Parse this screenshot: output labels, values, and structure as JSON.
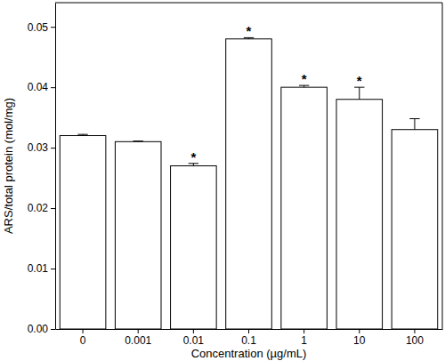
{
  "chart_data": {
    "type": "bar",
    "x_label": "Concentration (µg/mL)",
    "y_label": "ARS/total protein (mol/mg)",
    "categories": [
      "0",
      "0.001",
      "0.01",
      "0.1",
      "1",
      "10",
      "100"
    ],
    "values": [
      0.032,
      0.031,
      0.027,
      0.048,
      0.04,
      0.038,
      0.033
    ],
    "errors": [
      0.0002,
      0.0001,
      0.0004,
      0.0002,
      0.0003,
      0.002,
      0.0018
    ],
    "color": "#ffffff",
    "ylim": [
      0,
      0.054
    ],
    "yticks": [
      {
        "value": 0,
        "label": "0.00"
      },
      {
        "value": 0.01,
        "label": "0.01"
      },
      {
        "value": 0.02,
        "label": "0.02"
      },
      {
        "value": 0.03,
        "label": "0.03"
      },
      {
        "value": 0.04,
        "label": "0.04"
      },
      {
        "value": 0.05,
        "label": "0.05"
      }
    ],
    "annotations": [
      {
        "category": "0.01",
        "text": "*"
      },
      {
        "category": "0.1",
        "text": "*"
      },
      {
        "category": "1",
        "text": "*"
      },
      {
        "category": "10",
        "text": "*"
      }
    ],
    "grid": false
  }
}
